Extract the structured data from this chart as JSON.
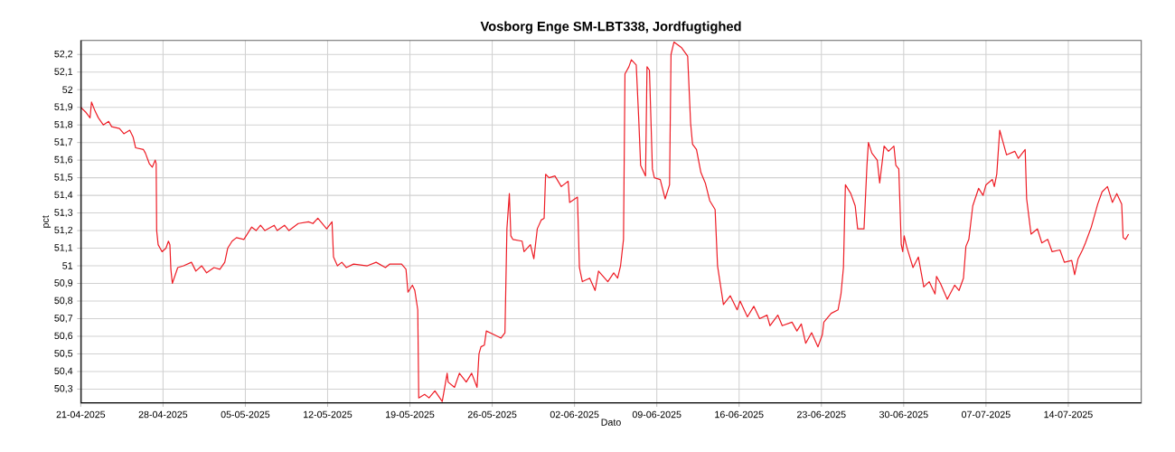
{
  "chart_data": {
    "type": "line",
    "title": "Vosborg Enge SM-LBT338, Jordfugtighed",
    "xlabel": "Dato",
    "ylabel": "pct",
    "grid": true,
    "marker": "none",
    "line_style": "solid",
    "xlim": [
      "2025-04-21T00:00",
      "2025-07-20T05:00"
    ],
    "ylim": [
      50.22,
      52.28
    ],
    "xticks": [
      {
        "value": "2025-04-21",
        "label": "21-04-2025"
      },
      {
        "value": "2025-04-28",
        "label": "28-04-2025"
      },
      {
        "value": "2025-05-05",
        "label": "05-05-2025"
      },
      {
        "value": "2025-05-12",
        "label": "12-05-2025"
      },
      {
        "value": "2025-05-19",
        "label": "19-05-2025"
      },
      {
        "value": "2025-05-26",
        "label": "26-05-2025"
      },
      {
        "value": "2025-06-02",
        "label": "02-06-2025"
      },
      {
        "value": "2025-06-09",
        "label": "09-06-2025"
      },
      {
        "value": "2025-06-16",
        "label": "16-06-2025"
      },
      {
        "value": "2025-06-23",
        "label": "23-06-2025"
      },
      {
        "value": "2025-06-30",
        "label": "30-06-2025"
      },
      {
        "value": "2025-07-07",
        "label": "07-07-2025"
      },
      {
        "value": "2025-07-14",
        "label": "14-07-2025"
      }
    ],
    "yticks": [
      {
        "value": 50.3,
        "label": "50,3"
      },
      {
        "value": 50.4,
        "label": "50,4"
      },
      {
        "value": 50.5,
        "label": "50,5"
      },
      {
        "value": 50.6,
        "label": "50,6"
      },
      {
        "value": 50.7,
        "label": "50,7"
      },
      {
        "value": 50.8,
        "label": "50,8"
      },
      {
        "value": 50.9,
        "label": "50,9"
      },
      {
        "value": 51,
        "label": "51"
      },
      {
        "value": 51.1,
        "label": "51,1"
      },
      {
        "value": 51.2,
        "label": "51,2"
      },
      {
        "value": 51.3,
        "label": "51,3"
      },
      {
        "value": 51.4,
        "label": "51,4"
      },
      {
        "value": 51.5,
        "label": "51,5"
      },
      {
        "value": 51.6,
        "label": "51,6"
      },
      {
        "value": 51.7,
        "label": "51,7"
      },
      {
        "value": 51.8,
        "label": "51,8"
      },
      {
        "value": 51.9,
        "label": "51,9"
      },
      {
        "value": 52,
        "label": "52"
      },
      {
        "value": 52.1,
        "label": "52,1"
      },
      {
        "value": 52.2,
        "label": "52,2"
      }
    ],
    "x": [
      "2025-04-21T00:00",
      "2025-04-21T11:00",
      "2025-04-21T19:00",
      "2025-04-21T22:00",
      "2025-04-22T05:00",
      "2025-04-22T12:00",
      "2025-04-22T22:00",
      "2025-04-23T09:00",
      "2025-04-23T15:00",
      "2025-04-24T07:00",
      "2025-04-24T16:00",
      "2025-04-25T04:00",
      "2025-04-25T11:00",
      "2025-04-25T16:00",
      "2025-04-26T08:00",
      "2025-04-26T12:00",
      "2025-04-26T20:00",
      "2025-04-27T02:00",
      "2025-04-27T08:00",
      "2025-04-27T10:00",
      "2025-04-27T11:00",
      "2025-04-27T14:00",
      "2025-04-27T22:00",
      "2025-04-28T06:00",
      "2025-04-28T11:00",
      "2025-04-28T14:00",
      "2025-04-28T16:00",
      "2025-04-28T19:00",
      "2025-04-29T06:00",
      "2025-04-29T18:00",
      "2025-04-30T10:00",
      "2025-04-30T19:00",
      "2025-05-01T07:00",
      "2025-05-01T17:00",
      "2025-05-02T08:00",
      "2025-05-02T20:00",
      "2025-05-03T06:00",
      "2025-05-03T12:00",
      "2025-05-03T21:00",
      "2025-05-04T06:00",
      "2025-05-04T21:00",
      "2025-05-05T13:00",
      "2025-05-05T22:00",
      "2025-05-06T07:00",
      "2025-05-06T16:00",
      "2025-05-07T11:00",
      "2025-05-07T17:00",
      "2025-05-08T08:00",
      "2025-05-08T17:00",
      "2025-05-09T12:00",
      "2025-05-10T09:00",
      "2025-05-10T18:00",
      "2025-05-11T04:00",
      "2025-05-11T22:00",
      "2025-05-12T09:00",
      "2025-05-12T12:00",
      "2025-05-12T20:00",
      "2025-05-13T05:00",
      "2025-05-13T14:00",
      "2025-05-14T05:00",
      "2025-05-15T09:00",
      "2025-05-16T03:00",
      "2025-05-16T22:00",
      "2025-05-17T07:00",
      "2025-05-18T07:00",
      "2025-05-18T16:00",
      "2025-05-18T20:00",
      "2025-05-19T05:00",
      "2025-05-19T10:00",
      "2025-05-19T16:00",
      "2025-05-19T18:00",
      "2025-05-20T06:00",
      "2025-05-20T15:00",
      "2025-05-21T03:00",
      "2025-05-21T18:00",
      "2025-05-22T04:00",
      "2025-05-22T06:00",
      "2025-05-22T19:00",
      "2025-05-23T05:00",
      "2025-05-23T19:00",
      "2025-05-24T06:00",
      "2025-05-24T17:00",
      "2025-05-24T21:00",
      "2025-05-25T01:00",
      "2025-05-25T08:00",
      "2025-05-25T12:00",
      "2025-05-26T03:00",
      "2025-05-26T18:00",
      "2025-05-27T02:00",
      "2025-05-27T06:00",
      "2025-05-27T11:00",
      "2025-05-27T14:00",
      "2025-05-27T18:00",
      "2025-05-28T13:00",
      "2025-05-28T17:00",
      "2025-05-29T06:00",
      "2025-05-29T13:00",
      "2025-05-29T20:00",
      "2025-05-30T04:00",
      "2025-05-30T10:00",
      "2025-05-30T13:00",
      "2025-05-30T20:00",
      "2025-05-31T08:00",
      "2025-05-31T21:00",
      "2025-06-01T11:00",
      "2025-06-01T14:00",
      "2025-06-02T06:00",
      "2025-06-02T10:00",
      "2025-06-02T16:00",
      "2025-06-03T07:00",
      "2025-06-03T18:00",
      "2025-06-04T01:00",
      "2025-06-04T20:00",
      "2025-06-05T08:00",
      "2025-06-05T16:00",
      "2025-06-05T22:00",
      "2025-06-06T04:00",
      "2025-06-06T07:00",
      "2025-06-06T15:00",
      "2025-06-06T20:00",
      "2025-06-07T06:00",
      "2025-06-07T11:00",
      "2025-06-07T15:00",
      "2025-06-08T01:00",
      "2025-06-08T04:00",
      "2025-06-08T09:00",
      "2025-06-08T15:00",
      "2025-06-08T19:00",
      "2025-06-09T07:00",
      "2025-06-09T17:00",
      "2025-06-10T02:00",
      "2025-06-10T05:00",
      "2025-06-10T11:00",
      "2025-06-11T02:00",
      "2025-06-11T15:00",
      "2025-06-11T21:00",
      "2025-06-12T01:00",
      "2025-06-12T09:00",
      "2025-06-12T18:00",
      "2025-06-13T03:00",
      "2025-06-13T12:00",
      "2025-06-13T23:00",
      "2025-06-14T04:00",
      "2025-06-14T16:00",
      "2025-06-15T06:00",
      "2025-06-15T20:00",
      "2025-06-16T02:00",
      "2025-06-16T17:00",
      "2025-06-17T06:00",
      "2025-06-17T18:00",
      "2025-06-18T09:00",
      "2025-06-18T15:00",
      "2025-06-19T07:00",
      "2025-06-19T16:00",
      "2025-06-20T12:00",
      "2025-06-20T22:00",
      "2025-06-21T07:00",
      "2025-06-21T16:00",
      "2025-06-22T04:00",
      "2025-06-22T17:00",
      "2025-06-23T02:00",
      "2025-06-23T05:00",
      "2025-06-23T20:00",
      "2025-06-24T10:00",
      "2025-06-24T16:00",
      "2025-06-24T21:00",
      "2025-06-25T01:00",
      "2025-06-25T12:00",
      "2025-06-25T21:00",
      "2025-06-26T02:00",
      "2025-06-26T15:00",
      "2025-06-26T21:00",
      "2025-06-27T00:00",
      "2025-06-27T07:00",
      "2025-06-27T18:00",
      "2025-06-27T23:00",
      "2025-06-28T08:00",
      "2025-06-28T17:00",
      "2025-06-29T04:00",
      "2025-06-29T08:00",
      "2025-06-29T14:00",
      "2025-06-29T19:00",
      "2025-06-29T22:00",
      "2025-06-30T01:00",
      "2025-06-30T06:00",
      "2025-06-30T19:00",
      "2025-07-01T06:00",
      "2025-07-01T17:00",
      "2025-07-02T04:00",
      "2025-07-02T16:00",
      "2025-07-02T19:00",
      "2025-07-03T03:00",
      "2025-07-03T17:00",
      "2025-07-04T08:00",
      "2025-07-04T17:00",
      "2025-07-05T02:00",
      "2025-07-05T07:00",
      "2025-07-05T13:00",
      "2025-07-05T21:00",
      "2025-07-06T09:00",
      "2025-07-06T18:00",
      "2025-07-07T00:00",
      "2025-07-07T13:00",
      "2025-07-07T17:00",
      "2025-07-07T22:00",
      "2025-07-08T04:00",
      "2025-07-08T11:00",
      "2025-07-08T18:00",
      "2025-07-09T11:00",
      "2025-07-09T18:00",
      "2025-07-10T08:00",
      "2025-07-10T11:00",
      "2025-07-10T20:00",
      "2025-07-11T09:00",
      "2025-07-11T18:00",
      "2025-07-12T06:00",
      "2025-07-12T15:00",
      "2025-07-13T07:00",
      "2025-07-13T16:00",
      "2025-07-14T07:00",
      "2025-07-14T13:00",
      "2025-07-14T20:00",
      "2025-07-15T05:00",
      "2025-07-15T11:00",
      "2025-07-15T23:00",
      "2025-07-16T12:00",
      "2025-07-16T21:00",
      "2025-07-17T08:00",
      "2025-07-17T18:00",
      "2025-07-18T03:00",
      "2025-07-18T13:00",
      "2025-07-18T16:00",
      "2025-07-18T21:00",
      "2025-07-19T03:00"
    ],
    "series": [
      {
        "color": "#ee1c25",
        "values": [
          51.9,
          51.87,
          51.84,
          51.93,
          51.88,
          51.84,
          51.8,
          51.82,
          51.79,
          51.78,
          51.75,
          51.77,
          51.73,
          51.67,
          51.66,
          51.64,
          51.58,
          51.56,
          51.6,
          51.58,
          51.2,
          51.12,
          51.08,
          51.1,
          51.14,
          51.12,
          50.98,
          50.9,
          50.99,
          51.0,
          51.02,
          50.97,
          51.0,
          50.96,
          50.99,
          50.98,
          51.02,
          51.1,
          51.14,
          51.16,
          51.15,
          51.22,
          51.2,
          51.23,
          51.2,
          51.23,
          51.2,
          51.23,
          51.2,
          51.24,
          51.25,
          51.24,
          51.27,
          51.21,
          51.25,
          51.05,
          51.0,
          51.02,
          50.99,
          51.01,
          51.0,
          51.02,
          50.99,
          51.01,
          51.01,
          50.98,
          50.85,
          50.89,
          50.86,
          50.75,
          50.25,
          50.27,
          50.25,
          50.29,
          50.23,
          50.39,
          50.34,
          50.31,
          50.39,
          50.34,
          50.39,
          50.31,
          50.5,
          50.54,
          50.55,
          50.63,
          50.61,
          50.59,
          50.62,
          51.21,
          51.41,
          51.17,
          51.15,
          51.14,
          51.08,
          51.12,
          51.04,
          51.21,
          51.26,
          51.27,
          51.52,
          51.5,
          51.51,
          51.45,
          51.48,
          51.36,
          51.39,
          50.99,
          50.91,
          50.93,
          50.86,
          50.97,
          50.91,
          50.96,
          50.93,
          51.0,
          51.15,
          52.09,
          52.13,
          52.17,
          52.14,
          51.84,
          51.57,
          51.51,
          52.13,
          52.11,
          51.55,
          51.5,
          51.49,
          51.38,
          51.46,
          52.2,
          52.27,
          52.24,
          52.19,
          51.81,
          51.69,
          51.66,
          51.53,
          51.47,
          51.37,
          51.32,
          51.0,
          50.78,
          50.83,
          50.75,
          50.8,
          50.71,
          50.77,
          50.7,
          50.72,
          50.66,
          50.72,
          50.66,
          50.68,
          50.63,
          50.67,
          50.56,
          50.62,
          50.54,
          50.61,
          50.68,
          50.73,
          50.75,
          50.84,
          50.99,
          51.46,
          51.41,
          51.34,
          51.21,
          51.21,
          51.57,
          51.7,
          51.64,
          51.6,
          51.47,
          51.68,
          51.65,
          51.68,
          51.57,
          51.55,
          51.12,
          51.08,
          51.17,
          51.11,
          50.99,
          51.05,
          50.88,
          50.91,
          50.84,
          50.94,
          50.9,
          50.81,
          50.89,
          50.86,
          50.93,
          51.11,
          51.15,
          51.34,
          51.44,
          51.4,
          51.46,
          51.49,
          51.45,
          51.52,
          51.77,
          51.7,
          51.63,
          51.65,
          51.61,
          51.66,
          51.38,
          51.18,
          51.21,
          51.13,
          51.15,
          51.08,
          51.09,
          51.02,
          51.03,
          50.95,
          51.04,
          51.09,
          51.13,
          51.22,
          51.35,
          51.42,
          51.45,
          51.36,
          51.41,
          51.35,
          51.16,
          51.15,
          51.18
        ]
      }
    ]
  }
}
